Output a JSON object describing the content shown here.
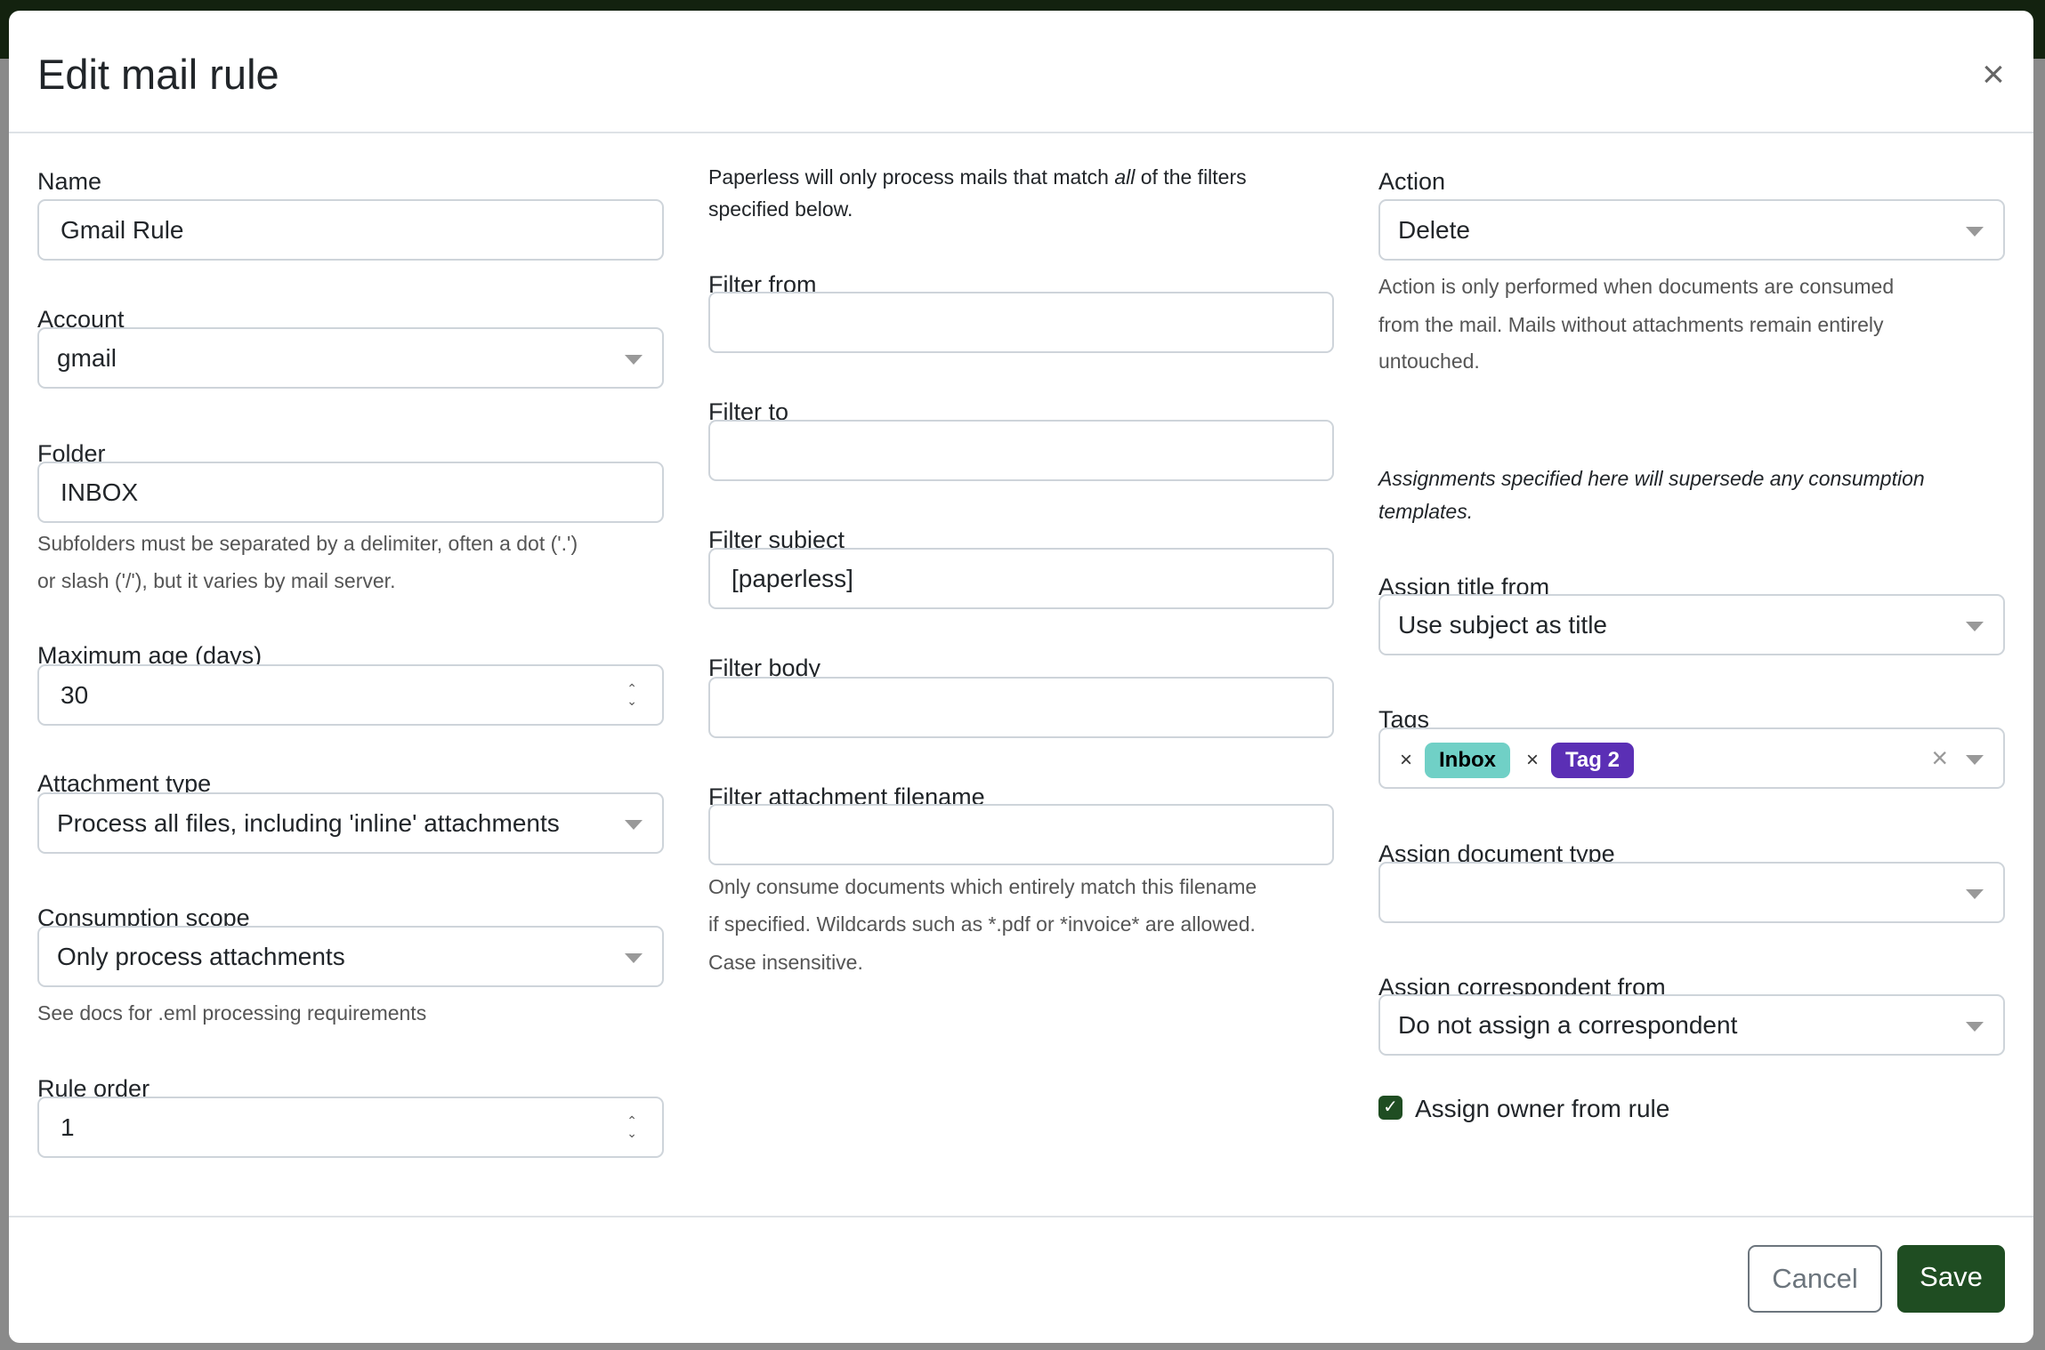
{
  "title": "Edit mail rule",
  "col1": {
    "name_label": "Name",
    "name_value": "Gmail Rule",
    "account_label": "Account",
    "account_value": "gmail",
    "folder_label": "Folder",
    "folder_value": "INBOX",
    "folder_help_1": "Subfolders must be separated by a delimiter, often a dot ('.')",
    "folder_help_2": "or slash ('/'), but it varies by mail server.",
    "max_age_label": "Maximum age (days)",
    "max_age_value": "30",
    "attachment_type_label": "Attachment type",
    "attachment_type_value": "Process all files, including 'inline' attachments",
    "scope_label": "Consumption scope",
    "scope_value": "Only process attachments",
    "scope_help": "See docs for .eml processing requirements",
    "order_label": "Rule order",
    "order_value": "1"
  },
  "col2": {
    "intro_1a": "Paperless will only process mails that match ",
    "intro_1b": "all",
    "intro_1c": " of the filters",
    "intro_2": "specified below.",
    "from_label": "Filter from",
    "from_value": "",
    "to_label": "Filter to",
    "to_value": "",
    "subject_label": "Filter subject",
    "subject_value": "[paperless]",
    "body_label": "Filter body",
    "body_value": "",
    "attach_label": "Filter attachment filename",
    "attach_value": "",
    "attach_help_1": "Only consume documents which entirely match this filename",
    "attach_help_2": "if specified. Wildcards such as *.pdf or *invoice* are allowed.",
    "attach_help_3": "Case insensitive."
  },
  "col3": {
    "action_label": "Action",
    "action_value": "Delete",
    "action_help_1": "Action is only performed when documents are consumed",
    "action_help_2": "from the mail. Mails without attachments remain entirely",
    "action_help_3": "untouched.",
    "assign_note_1": "Assignments specified here will supersede any consumption",
    "assign_note_2": "templates.",
    "title_label": "Assign title from",
    "title_value": "Use subject as title",
    "tags_label": "Tags",
    "tags": [
      {
        "label": "Inbox",
        "color": "#70d0c6",
        "text_color": "#000000"
      },
      {
        "label": "Tag 2",
        "color": "#5b2fb5",
        "text_color": "#ffffff"
      }
    ],
    "doctype_label": "Assign document type",
    "doctype_value": "",
    "corr_label": "Assign correspondent from",
    "corr_value": "Do not assign a correspondent",
    "owner_label": "Assign owner from rule",
    "owner_checked": true
  },
  "footer": {
    "cancel": "Cancel",
    "save": "Save"
  },
  "colors": {
    "primary": "#1f4d22",
    "backdrop": "#13220f"
  }
}
